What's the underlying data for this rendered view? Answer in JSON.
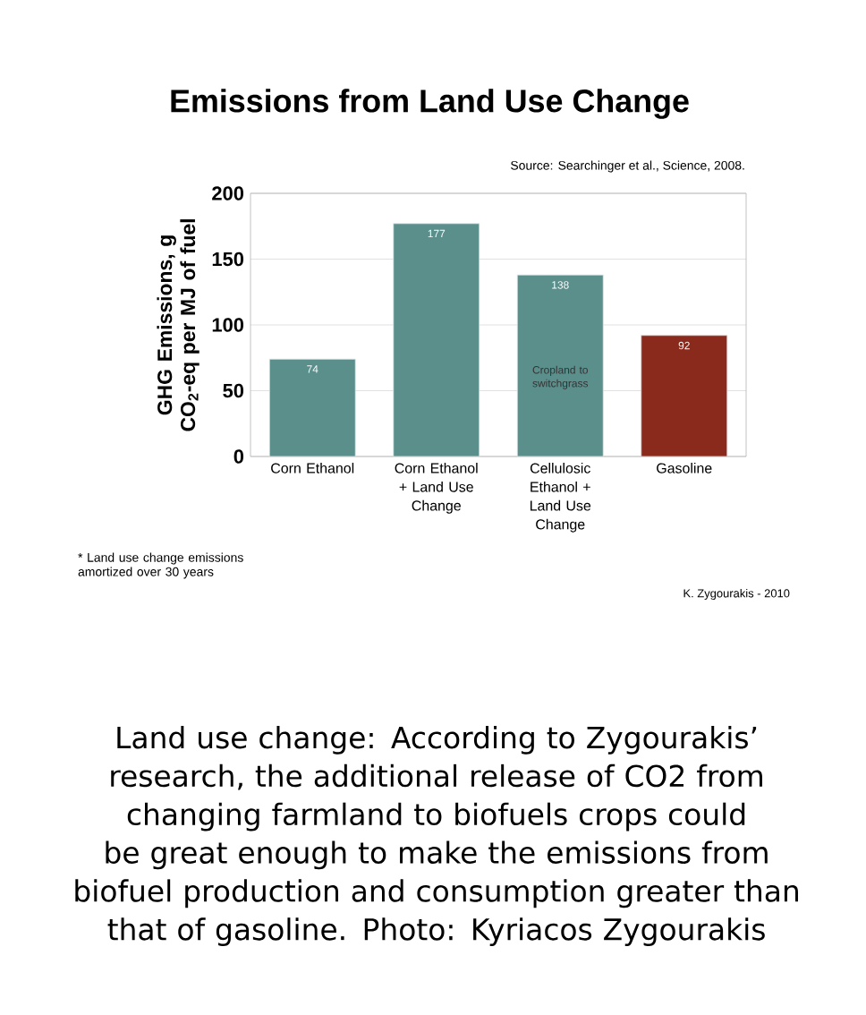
{
  "chart_data": {
    "type": "bar",
    "title": "Emissions from Land Use Change",
    "ylabel": "GHG Emissions, g CO$_{2}$-eq per MJ of fuel",
    "categories": [
      "Corn Ethanol",
      "Corn Ethanol + Land Use Change",
      "Cellulosic Ethanol + Land Use Change",
      "Gasoline"
    ],
    "values": [
      74,
      177,
      138,
      92
    ],
    "colors": [
      "#5b8f8c",
      "#5b8f8c",
      "#5b8f8c",
      "#8a2a1c"
    ],
    "ylim": [
      0,
      200
    ],
    "yticks": [
      0,
      50,
      100,
      150,
      200
    ],
    "grid": "y",
    "data_labels": true,
    "annotations": [
      "Source: Searchinger et al., Science, 2008.",
      "* Land use change emissions amortized over 30 years",
      "K. Zygourakis - 2010",
      "Cropland to switchgrass",
      "Land use change: According to Zygourakis’ research, the additional release of CO2 from changing farmland to biofuels crops could be great enough to make the emissions from biofuel production and consumption greater than that of gasoline. Photo: Kyriacos Zygourakis"
    ]
  }
}
